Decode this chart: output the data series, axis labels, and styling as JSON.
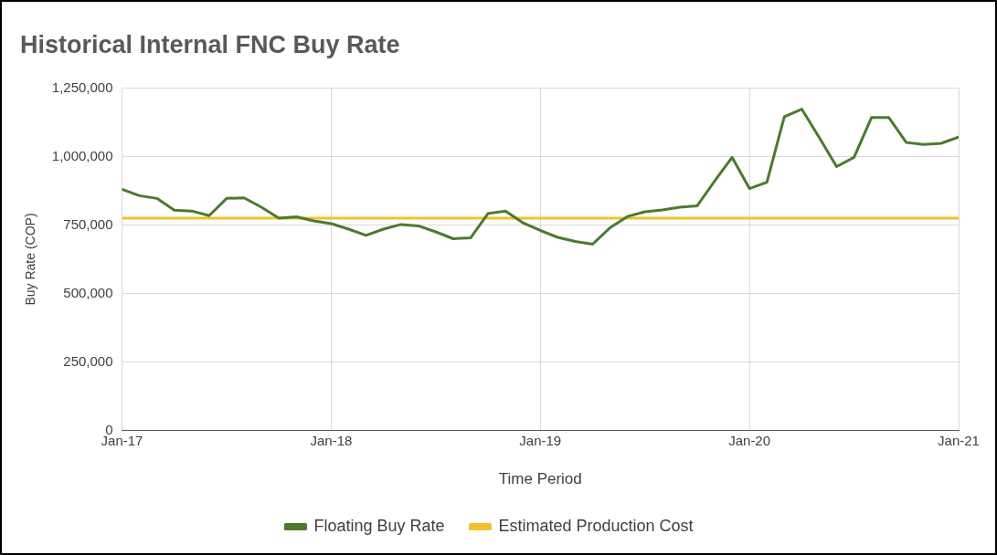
{
  "chart_data": {
    "type": "line",
    "title": "Historical Internal FNC Buy Rate",
    "xlabel": "Time Period",
    "ylabel": "Buy Rate (COP)",
    "x": [
      "2017-01",
      "2017-02",
      "2017-03",
      "2017-04",
      "2017-05",
      "2017-06",
      "2017-07",
      "2017-08",
      "2017-09",
      "2017-10",
      "2017-11",
      "2017-12",
      "2018-01",
      "2018-02",
      "2018-03",
      "2018-04",
      "2018-05",
      "2018-06",
      "2018-07",
      "2018-08",
      "2018-09",
      "2018-10",
      "2018-11",
      "2018-12",
      "2019-01",
      "2019-02",
      "2019-03",
      "2019-04",
      "2019-05",
      "2019-06",
      "2019-07",
      "2019-08",
      "2019-09",
      "2019-10",
      "2019-11",
      "2019-12",
      "2020-01",
      "2020-02",
      "2020-03",
      "2020-04",
      "2020-05",
      "2020-06",
      "2020-07",
      "2020-08",
      "2020-09",
      "2020-10",
      "2020-11",
      "2020-12",
      "2021-01"
    ],
    "series": [
      {
        "name": "Floating Buy Rate",
        "color": "#4b7a2f",
        "values": [
          880000,
          857000,
          847000,
          804000,
          801000,
          784000,
          847000,
          849000,
          815000,
          775000,
          780000,
          765000,
          755000,
          735000,
          712000,
          735000,
          752000,
          747000,
          725000,
          700000,
          703000,
          792000,
          801000,
          758000,
          730000,
          705000,
          690000,
          680000,
          740000,
          781000,
          798000,
          805000,
          815000,
          820000,
          910000,
          997000,
          883000,
          906000,
          1145000,
          1173000,
          1070000,
          963000,
          997000,
          1142000,
          1142000,
          1051000,
          1044000,
          1048000,
          1071000
        ]
      },
      {
        "name": "Estimated Production Cost",
        "color": "#f2c12e",
        "x": [
          "2017-01",
          "2021-01"
        ],
        "values": [
          775000,
          775000
        ]
      }
    ],
    "xlim": [
      "2017-01",
      "2021-01"
    ],
    "xticks": [
      {
        "value": "2017-01",
        "label": "Jan-17"
      },
      {
        "value": "2018-01",
        "label": "Jan-18"
      },
      {
        "value": "2019-01",
        "label": "Jan-19"
      },
      {
        "value": "2020-01",
        "label": "Jan-20"
      },
      {
        "value": "2021-01",
        "label": "Jan-21"
      }
    ],
    "ylim": [
      0,
      1250000
    ],
    "yticks": [
      {
        "value": 0,
        "label": "0"
      },
      {
        "value": 250000,
        "label": "250,000"
      },
      {
        "value": 500000,
        "label": "500,000"
      },
      {
        "value": 750000,
        "label": "750,000"
      },
      {
        "value": 1000000,
        "label": "1,000,000"
      },
      {
        "value": 1250000,
        "label": "1,250,000"
      }
    ],
    "grid": true,
    "legend": "bottom",
    "marker": "none",
    "line_style": "solid"
  }
}
